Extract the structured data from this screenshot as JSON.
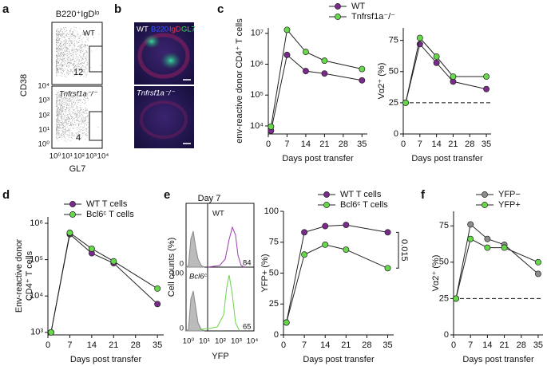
{
  "panels": {
    "letters": [
      "a",
      "b",
      "c",
      "d",
      "e",
      "f"
    ],
    "flow": {
      "gate_label": "B220⁺IgDˡᵒ",
      "groups": [
        "WT",
        "Tnfrsf1a⁻/⁻"
      ],
      "percentages": [
        12,
        4
      ],
      "y_label": "CD38",
      "x_label": "GL7",
      "y_ticks": [
        "10⁴",
        "10³",
        "10²",
        "10¹",
        "10⁰"
      ],
      "x_ticks": [
        "10⁰",
        "10¹",
        "10²",
        "10³",
        "10⁴"
      ]
    },
    "imaging": {
      "groups": [
        "WT",
        "Tnfrsf1a⁻/⁻"
      ],
      "stains": [
        "B220",
        "IgD",
        "GL7"
      ]
    },
    "histogram": {
      "title": "Day 7",
      "groups": [
        "WT",
        "Bcl6ᶜ"
      ],
      "percentages": [
        84,
        65
      ],
      "y_label": "Cell counts (%)",
      "y_ticks": [
        "0",
        "100",
        "0"
      ],
      "x_label": "YFP",
      "x_ticks": [
        "10⁰",
        "10¹",
        "10²",
        "10³",
        "10⁴"
      ]
    }
  },
  "chart_data": [
    {
      "type": "line",
      "y_label": "env-reactive donor CD4⁺ T cells",
      "x_label": "Days post transfer",
      "x": [
        1,
        7,
        14,
        21,
        35
      ],
      "xlim": [
        0,
        37
      ],
      "xticks": [
        0,
        7,
        14,
        21,
        28,
        35
      ],
      "y_scale": "log",
      "ylim": [
        5500,
        15000000
      ],
      "yticks": [
        {
          "value": 10000,
          "label": "10⁴"
        },
        {
          "value": 100000,
          "label": "10⁵"
        },
        {
          "value": 1000000,
          "label": "10⁶"
        },
        {
          "value": 10000000,
          "label": "10⁷"
        }
      ],
      "legend": "top",
      "series": [
        {
          "name": "WT",
          "color": "#7a2a8c",
          "values": [
            7000,
            2000000,
            600000,
            500000,
            300000
          ]
        },
        {
          "name": "Tnfrsf1a⁻/⁻",
          "color": "#66d94a",
          "values": [
            9500,
            13000000,
            2500000,
            1300000,
            700000
          ]
        }
      ]
    },
    {
      "type": "line",
      "y_label": "Vα2⁺ (%)",
      "x_label": "Days post transfer",
      "x": [
        1,
        7,
        14,
        21,
        35
      ],
      "xlim": [
        0,
        37
      ],
      "xticks": [
        0,
        7,
        14,
        21,
        28,
        35
      ],
      "ylim": [
        0,
        85
      ],
      "yticks": [
        0,
        25,
        50,
        75
      ],
      "hline": 25,
      "series": [
        {
          "color": "#7a2a8c",
          "values": [
            25,
            72,
            57,
            42,
            36
          ]
        },
        {
          "color": "#66d94a",
          "values": [
            25,
            77,
            62,
            46,
            46
          ]
        }
      ]
    },
    {
      "type": "line",
      "y_label": [
        "Env-reactive donor",
        "CD4⁺ T cells"
      ],
      "x_label": "Days post transfer",
      "x": [
        1,
        7,
        14,
        21,
        35
      ],
      "xlim": [
        0,
        37
      ],
      "xticks": [
        0,
        7,
        14,
        21,
        28,
        35
      ],
      "y_scale": "log",
      "ylim": [
        850,
        1500000
      ],
      "yticks": [
        {
          "value": 1000,
          "label": "10³"
        },
        {
          "value": 10000,
          "label": "10⁴"
        },
        {
          "value": 100000,
          "label": "10⁵"
        },
        {
          "value": 1000000,
          "label": "10⁶"
        }
      ],
      "legend": "top",
      "series": [
        {
          "name": "WT T cells",
          "color": "#7a2a8c",
          "values": [
            1000,
            500000,
            150000,
            80000,
            6000
          ]
        },
        {
          "name": "Bcl6ᶜ T cells",
          "color": "#66d94a",
          "values": [
            1000,
            550000,
            200000,
            90000,
            16000
          ]
        }
      ]
    },
    {
      "type": "line",
      "y_label": "YFP+ (%)",
      "x_label": "Days post transfer",
      "x": [
        1,
        7,
        14,
        21,
        35
      ],
      "xlim": [
        0,
        37
      ],
      "xticks": [
        0,
        7,
        14,
        21,
        28,
        35
      ],
      "ylim": [
        0,
        100
      ],
      "yticks": [
        0,
        25,
        50,
        75,
        100
      ],
      "annotation": "0.015",
      "legend": "top",
      "series": [
        {
          "name": "WT T cells",
          "color": "#7a2a8c",
          "values": [
            10,
            83,
            88,
            89,
            83
          ]
        },
        {
          "name": "Bcl6ᶜ T cells",
          "color": "#66d94a",
          "values": [
            10,
            65,
            73,
            69,
            54
          ]
        }
      ]
    },
    {
      "type": "line",
      "y_label": "Vα2⁺ (%)",
      "x_label": "Days post transfer",
      "x": [
        1,
        7,
        14,
        21,
        35
      ],
      "xlim": [
        0,
        37
      ],
      "xticks": [
        0,
        7,
        14,
        21,
        28,
        35
      ],
      "ylim": [
        0,
        85
      ],
      "yticks": [
        0,
        25,
        50,
        75
      ],
      "hline": 25,
      "legend": "top",
      "series": [
        {
          "name": "YFP−",
          "color": "#8c8c8c",
          "values": [
            25,
            76,
            66,
            62,
            42
          ]
        },
        {
          "name": "YFP+",
          "color": "#66d94a",
          "values": [
            25,
            66,
            60,
            60,
            50
          ]
        }
      ]
    }
  ]
}
